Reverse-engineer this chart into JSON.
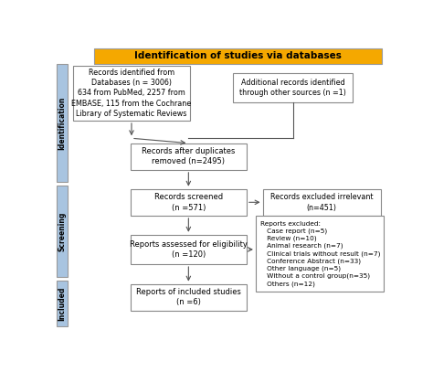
{
  "title": "Identification of studies via databases",
  "title_bg": "#F5A800",
  "sidebar_color": "#A8C4E0",
  "box_border": "#888888",
  "arrow_color": "#555555",
  "db_records_text": "Records identified from\nDatabases (n = 3006)\n634 from PubMed, 2257 from\nEMBASE, 115 from the Cochrane\nLibrary of Systematic Reviews",
  "other_records_text": "Additional records identified\nthrough other sources (n =1)",
  "after_duplicates_text": "Records after duplicates\nremoved (n=2495)",
  "screened_text": "Records screened\n(n =571)",
  "excluded_irrelevant_text": "Records excluded irrelevant\n(n=451)",
  "eligibility_text": "Reports assessed for eligibility\n(n =120)",
  "reports_excluded_text": "Reports excluded:\n   Case report (n=5)\n   Review (n=10)\n   Animal research (n=7)\n   Clinical trials without result (n=7)\n   Conference Abstract (n=33)\n   Other language (n=5)\n   Without a control group(n=35)\n   Others (n=12)",
  "included_text": "Reports of included studies\n(n =6)",
  "identification_label": "Identification",
  "screening_label": "Screening",
  "included_label": "Included"
}
